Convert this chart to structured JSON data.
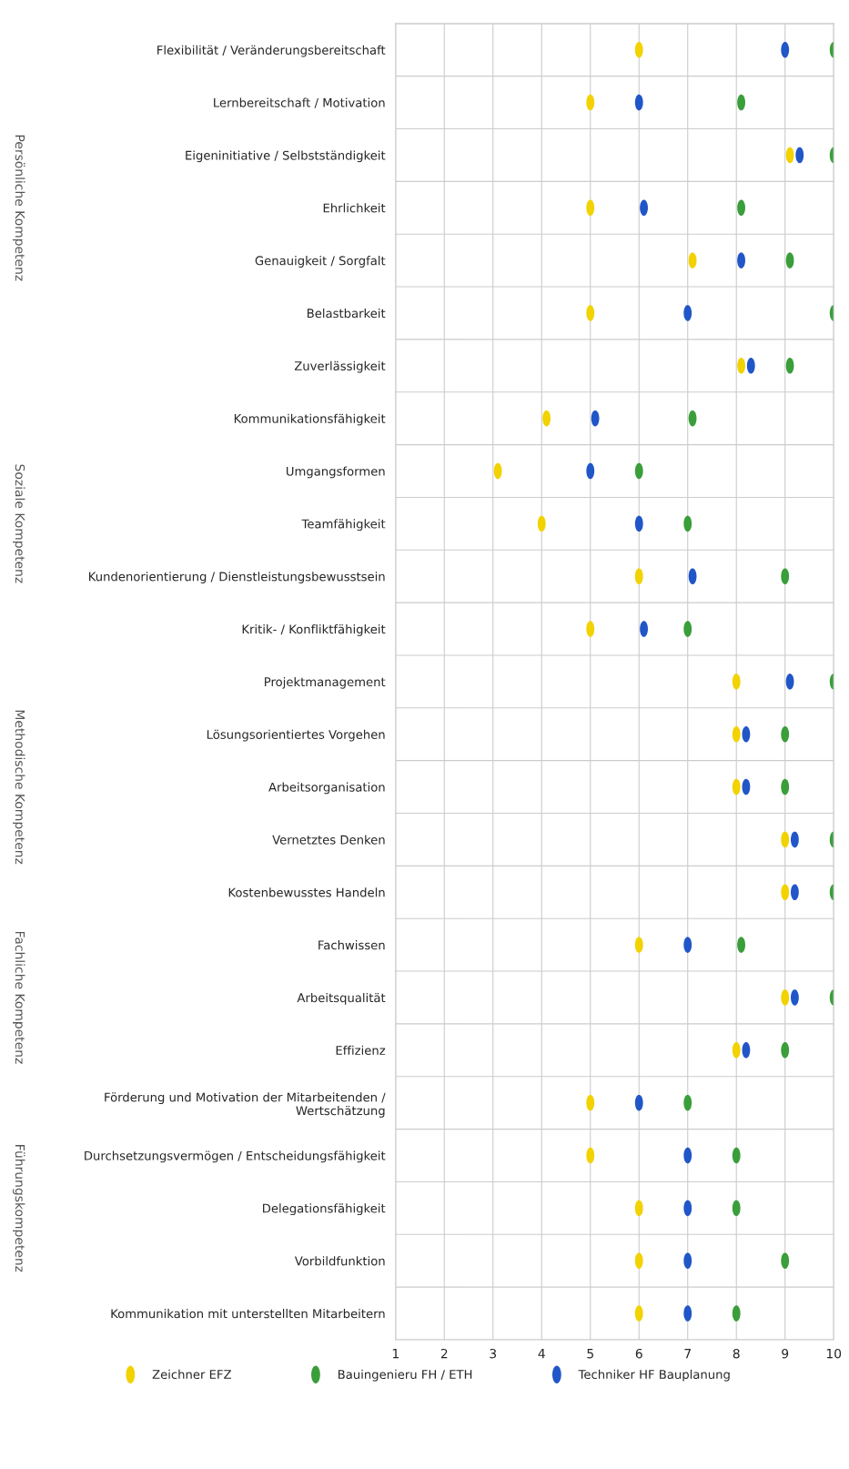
{
  "chart_data": {
    "type": "scatter",
    "orientation": "horizontal",
    "categories": [
      "Flexibilität / Veränderungsbereitschaft",
      "Lernbereitschaft / Motivation",
      "Eigeninitiative / Selbstständigkeit",
      "Ehrlichkeit",
      "Genauigkeit / Sorgfalt",
      "Belastbarkeit",
      "Zuverlässigkeit",
      "Kommunikationsfähigkeit",
      "Umgangsformen",
      "Teamfähigkeit",
      "Kundenorientierung / Dienstleistungsbewusstsein",
      "Kritik- / Konfliktfähigkeit",
      "Projektmanagement",
      "Lösungsorientiertes Vorgehen",
      "Arbeitsorganisation",
      "Vernetztes Denken",
      "Kostenbewusstes Handeln",
      "Fachwissen",
      "Arbeitsqualität",
      "Effizienz",
      "Förderung und Motivation der Mitarbeitenden /\nWertschätzung",
      "Durchsetzungsvermögen / Entscheidungsfähigkeit",
      "Delegationsfähigkeit",
      "Vorbildfunktion",
      "Kommunikation mit unterstellten Mitarbeitern"
    ],
    "series": [
      {
        "name": "Zeichner EFZ",
        "color": "#f2d200",
        "values": [
          6,
          5,
          9.1,
          5,
          7.1,
          5,
          8.1,
          4.1,
          3.1,
          4,
          6,
          5,
          8,
          8,
          8,
          9,
          9,
          6,
          9,
          8,
          5,
          5,
          6,
          6,
          6
        ]
      },
      {
        "name": "Bauingenieru FH / ETH",
        "color": "#3a9e3a",
        "values": [
          10,
          8.1,
          10,
          8.1,
          9.1,
          10,
          9.1,
          7.1,
          6,
          7,
          9,
          7,
          10,
          9,
          9,
          10,
          10,
          8.1,
          10,
          9,
          7,
          8,
          8,
          9,
          8
        ]
      },
      {
        "name": "Techniker HF Bauplanung",
        "color": "#2156c8",
        "values": [
          9,
          6,
          9.3,
          6.1,
          8.1,
          7,
          8.3,
          5.1,
          5,
          6,
          7.1,
          6.1,
          9.1,
          8.2,
          8.2,
          9.2,
          9.2,
          7,
          9.2,
          8.2,
          6,
          7,
          7,
          7,
          7
        ]
      }
    ],
    "xlim": [
      1,
      10
    ],
    "xticks": [
      1,
      2,
      3,
      4,
      5,
      6,
      7,
      8,
      9,
      10
    ],
    "grid": true,
    "legend": "bottom",
    "annotations": [
      "Persönliche Kompetenz",
      "Soziale Kompetenz",
      "Methodische Kompetenz",
      "Fachliche Kompetenz",
      "Führungskompetenz"
    ]
  }
}
